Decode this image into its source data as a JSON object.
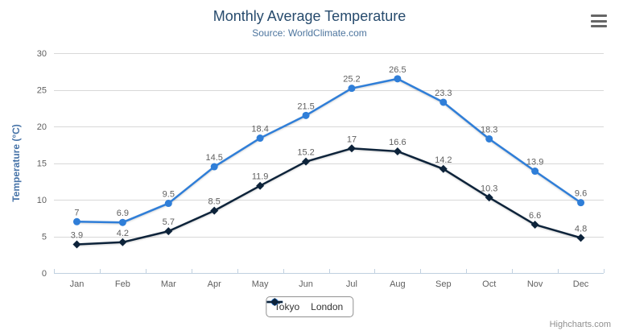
{
  "chart_data": {
    "type": "line",
    "title": "Monthly Average Temperature",
    "subtitle": "Source: WorldClimate.com",
    "categories": [
      "Jan",
      "Feb",
      "Mar",
      "Apr",
      "May",
      "Jun",
      "Jul",
      "Aug",
      "Sep",
      "Oct",
      "Nov",
      "Dec"
    ],
    "series": [
      {
        "name": "Tokyo",
        "color": "#2f7ed8",
        "marker": "circle",
        "values": [
          7,
          6.9,
          9.5,
          14.5,
          18.4,
          21.5,
          25.2,
          26.5,
          23.3,
          18.3,
          13.9,
          9.6
        ]
      },
      {
        "name": "London",
        "color": "#0d233a",
        "marker": "diamond",
        "values": [
          3.9,
          4.2,
          5.7,
          8.5,
          11.9,
          15.2,
          17,
          16.6,
          14.2,
          10.3,
          6.6,
          4.8
        ]
      }
    ],
    "xlabel": "",
    "ylabel": "Temperature (°C)",
    "ylim": [
      0,
      30
    ],
    "ytick_interval": 5,
    "grid": true,
    "data_labels": true,
    "legend_position": "bottom"
  },
  "credits": {
    "label": "Highcharts.com"
  },
  "export_menu": {
    "icon": "hamburger-icon"
  },
  "colors": {
    "title": "#274b6d",
    "subtitle": "#4d759e",
    "y_axis_title": "#4572a7",
    "axis_label": "#606060",
    "data_label": "#606060",
    "grid_line": "#d8d8d8",
    "axis_line": "#c0d0e0",
    "legend_border": "#909090",
    "legend_text": "#333333",
    "credits": "#909090",
    "menu_icon": "#666666"
  }
}
